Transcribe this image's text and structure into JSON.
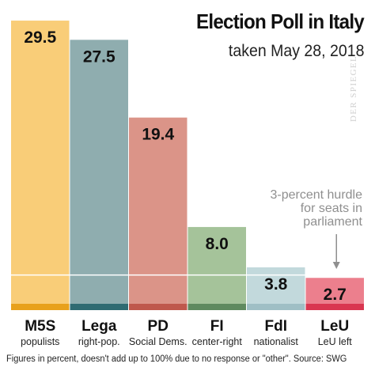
{
  "chart_data": {
    "type": "bar",
    "title": "Election Poll in Italy",
    "subtitle": "taken May 28, 2018",
    "ylim": [
      0,
      30
    ],
    "grid": false,
    "categories": [
      "M5S",
      "Lega",
      "PD",
      "FI",
      "FdI",
      "LeU"
    ],
    "category_subtitles": [
      "populists",
      "right-pop.",
      "Social Dems.",
      "center-right",
      "nationalist",
      "LeU left"
    ],
    "values": [
      29.5,
      27.5,
      19.4,
      8.0,
      3.8,
      2.7
    ],
    "value_labels": [
      "29.5",
      "27.5",
      "19.4",
      "8.0",
      "3.8",
      "2.7"
    ],
    "bar_colors": [
      "#f9cd78",
      "#8fadaf",
      "#db9488",
      "#a5c39a",
      "#c2d9dc",
      "#ec7f8d"
    ],
    "base_colors": [
      "#e8a11c",
      "#2f6b72",
      "#bf584c",
      "#5f8a5f",
      "#9fbfc5",
      "#d93650"
    ],
    "threshold": {
      "value": 3,
      "line_color": "#ffffff",
      "annotation_lines": [
        "3-percent hurdle",
        "for seats in",
        "parliament"
      ]
    },
    "annotation_color": "#8f8f8f"
  },
  "watermark": "DER SPIEGEL",
  "footnote": "Figures in percent, doesn't add up to 100% due to no response or \"other\". Source: SWG"
}
